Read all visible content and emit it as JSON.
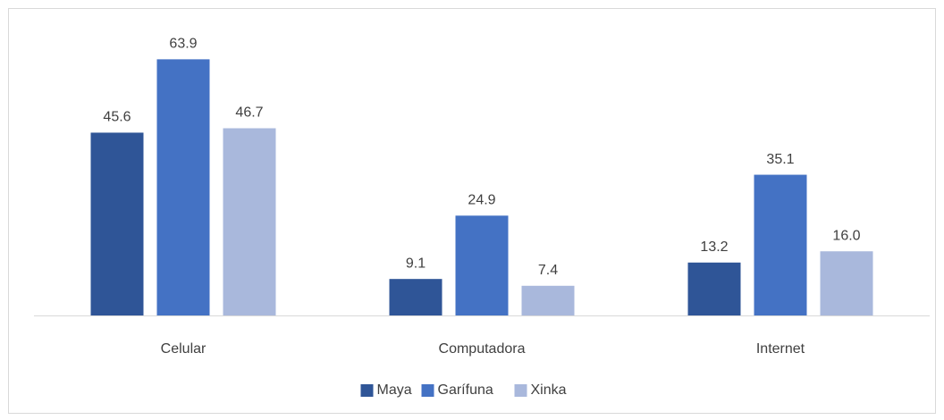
{
  "chart_data": {
    "type": "bar",
    "categories": [
      "Celular",
      "Computadora",
      "Internet"
    ],
    "series": [
      {
        "name": "Maya",
        "color": "#2f5597",
        "values": [
          45.6,
          9.1,
          13.2
        ],
        "value_labels": [
          "45.6",
          "9.1",
          "13.2"
        ]
      },
      {
        "name": "Garífuna",
        "color": "#4472c4",
        "values": [
          63.9,
          24.9,
          35.1
        ],
        "value_labels": [
          "63.9",
          "24.9",
          "35.1"
        ]
      },
      {
        "name": "Xinka",
        "color": "#a9b8dc",
        "values": [
          46.7,
          7.4,
          16.0
        ],
        "value_labels": [
          "46.7",
          "7.4",
          "16.0"
        ]
      }
    ],
    "ylim": [
      0,
      70
    ],
    "legend": "bottom"
  }
}
